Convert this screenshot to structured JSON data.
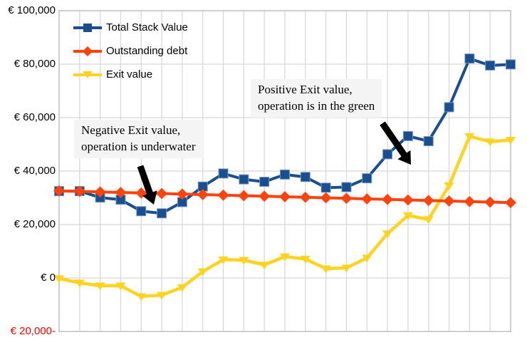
{
  "chart_data": {
    "type": "line",
    "title": "",
    "xlabel": "",
    "ylabel": "",
    "ylim": [
      -20000,
      100000
    ],
    "ytick_step": 20000,
    "grid": true,
    "legend_position": "top-left-inside",
    "background": "#ffffff",
    "gridline_color": "#d8d8d8",
    "border_color": "#c4c4c4",
    "yticks": [
      {
        "label": "€ 100,000",
        "value": 100000,
        "color": "#000000"
      },
      {
        "label": "€ 80,000",
        "value": 80000,
        "color": "#000000"
      },
      {
        "label": "€ 60,000",
        "value": 60000,
        "color": "#000000"
      },
      {
        "label": "€ 40,000",
        "value": 40000,
        "color": "#000000"
      },
      {
        "label": "€ 20,000",
        "value": 20000,
        "color": "#000000"
      },
      {
        "label": "€ 0",
        "value": 0,
        "color": "#000000"
      },
      {
        "label": "€ 20,000-",
        "value": -20000,
        "color": "#ff0000"
      }
    ],
    "series": [
      {
        "name": "Total Stack Value",
        "color": "#1B4E8E",
        "marker": "square",
        "values": [
          32500,
          32500,
          30100,
          29300,
          25000,
          24200,
          28400,
          34200,
          39100,
          36900,
          36000,
          38700,
          37800,
          33800,
          34000,
          37300,
          46300,
          53100,
          51200,
          63900,
          82100,
          79500,
          79900
        ]
      },
      {
        "name": "Outstanding debt",
        "color": "#FF420E",
        "marker": "diamond",
        "values": [
          32600,
          32400,
          32200,
          32000,
          31800,
          31600,
          31400,
          31200,
          31000,
          30800,
          30600,
          30400,
          30200,
          30000,
          29800,
          29600,
          29400,
          29200,
          29000,
          28800,
          28600,
          28400,
          28200
        ]
      },
      {
        "name": "Exit value",
        "color": "#FFD320",
        "marker": "triangle-down",
        "values": [
          -200,
          -1800,
          -2900,
          -2900,
          -6900,
          -6400,
          -3500,
          2400,
          6900,
          6700,
          4900,
          8000,
          7100,
          3500,
          3800,
          7500,
          16600,
          23400,
          21900,
          34600,
          53000,
          51000,
          51600
        ]
      }
    ],
    "annotations": [
      {
        "line1": "Negative Exit value,",
        "line2": "operation is underwater"
      },
      {
        "line1": "Positive Exit value,",
        "line2": "operation is in the green"
      }
    ],
    "arrows": [
      {
        "tail": [
          197,
          233
        ],
        "tip": [
          216,
          287
        ],
        "color": "#000000"
      },
      {
        "tail": [
          537,
          173
        ],
        "tip": [
          577,
          231
        ],
        "color": "#000000"
      }
    ]
  }
}
